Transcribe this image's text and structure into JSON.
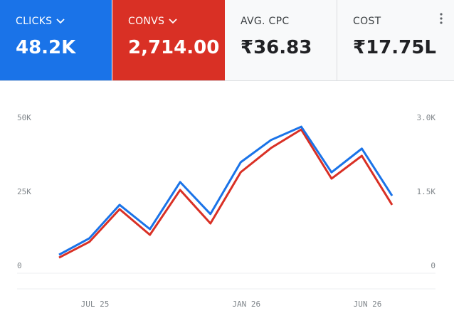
{
  "tiles": [
    {
      "label": "CLICKS",
      "value": "48.2K"
    },
    {
      "label": "CONVS",
      "value": "2,714.00"
    },
    {
      "label": "AVG. CPC",
      "value": "₹36.83"
    },
    {
      "label": "COST",
      "value": "₹17.75L"
    }
  ],
  "chart_data": {
    "type": "line",
    "categories": [
      null,
      "JUL 25",
      null,
      null,
      null,
      null,
      "JAN 26",
      null,
      null,
      null,
      "JUN 26",
      null
    ],
    "series": [
      {
        "color": "#1a73e8",
        "values": [
          6250,
          11800,
          23100,
          14900,
          30800,
          20000,
          37500,
          45000,
          49500,
          34100,
          42100,
          26200
        ]
      },
      {
        "color": "#d93025",
        "axis": "y2",
        "values": [
          317,
          635,
          1298,
          779,
          1688,
          1010,
          2048,
          2538,
          2913,
          1918,
          2380,
          1385
        ]
      }
    ],
    "ylim": [
      0,
      50000
    ],
    "yticks": [
      0,
      {
        "value": 25000,
        "label": "25K"
      },
      {
        "value": 50000,
        "label": "50K"
      }
    ],
    "y2lim": [
      0,
      3000
    ],
    "y2ticks": [
      0,
      {
        "value": 1500,
        "label": "1.5K"
      },
      {
        "value": 3000,
        "label": "3.0K"
      }
    ]
  }
}
